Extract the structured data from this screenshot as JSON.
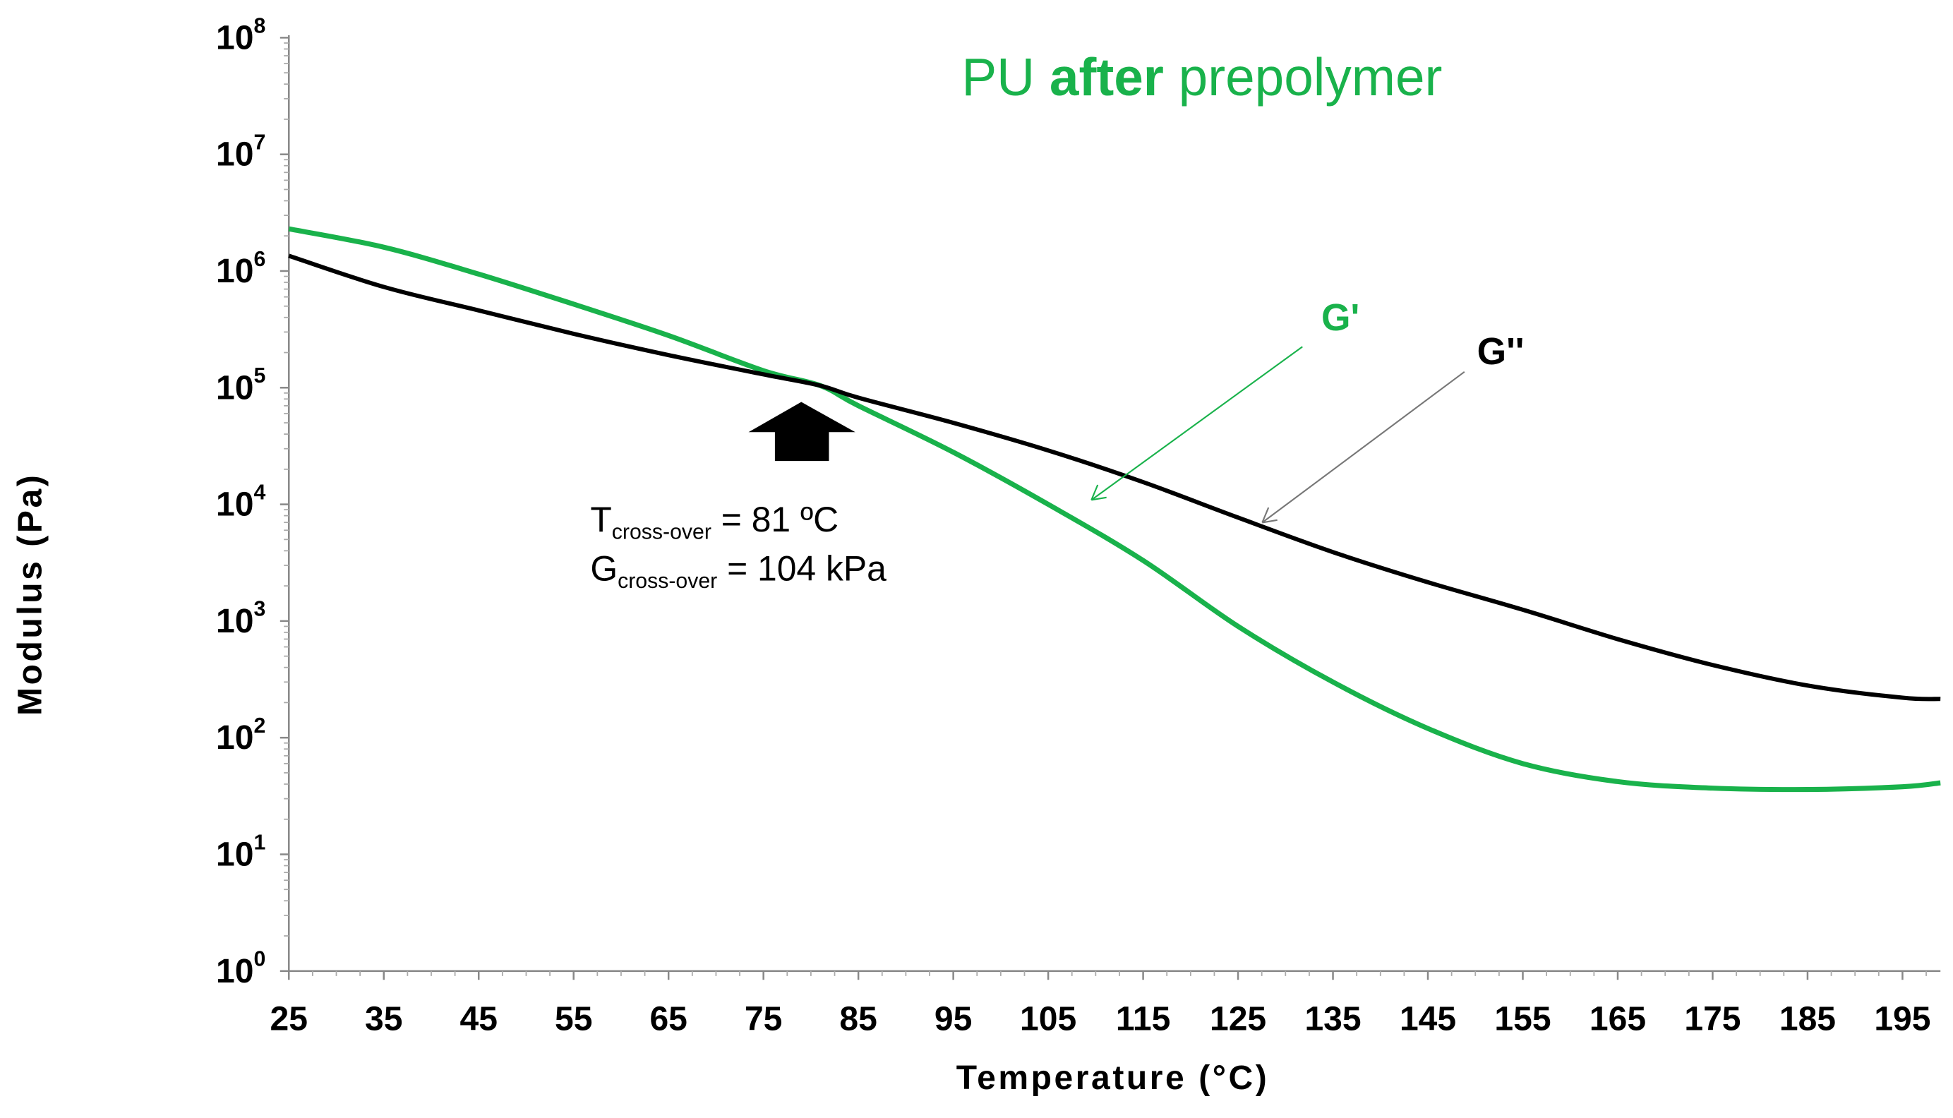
{
  "chart_data": {
    "type": "line",
    "title": {
      "prefix": "PU ",
      "emphasis": "after",
      "suffix": " prepolymer",
      "color": "#19b24b"
    },
    "xlabel": "Temperature (°C)",
    "ylabel": "Modulus (Pa)",
    "xlim": [
      25,
      199
    ],
    "ylim": [
      1,
      100000000
    ],
    "y_scale": "log",
    "x_ticks": [
      25,
      35,
      45,
      55,
      65,
      75,
      85,
      95,
      105,
      115,
      125,
      135,
      145,
      155,
      165,
      175,
      185,
      195
    ],
    "y_tick_labels": [
      {
        "base": "10",
        "exp": "0"
      },
      {
        "base": "10",
        "exp": "1"
      },
      {
        "base": "10",
        "exp": "2"
      },
      {
        "base": "10",
        "exp": "3"
      },
      {
        "base": "10",
        "exp": "4"
      },
      {
        "base": "10",
        "exp": "5"
      },
      {
        "base": "10",
        "exp": "6"
      },
      {
        "base": "10",
        "exp": "7"
      },
      {
        "base": "10",
        "exp": "8"
      }
    ],
    "grid": false,
    "series": [
      {
        "name": "G'",
        "color": "#19b24b",
        "x": [
          25,
          35,
          45,
          55,
          65,
          75,
          81,
          85,
          95,
          105,
          115,
          125,
          135,
          145,
          155,
          165,
          175,
          185,
          195,
          199
        ],
        "y": [
          2300000,
          1600000,
          940000,
          520000,
          280000,
          140000,
          104000,
          70000,
          28000,
          10000,
          3300,
          900,
          300,
          120,
          60,
          42,
          37,
          36,
          38,
          41
        ]
      },
      {
        "name": "G''",
        "color": "#000000",
        "x": [
          25,
          35,
          45,
          55,
          65,
          75,
          81,
          85,
          95,
          105,
          115,
          125,
          135,
          145,
          155,
          165,
          175,
          185,
          195,
          199
        ],
        "y": [
          1350000,
          730000,
          460000,
          290000,
          190000,
          130000,
          104000,
          82000,
          50000,
          29000,
          15500,
          7700,
          3900,
          2150,
          1250,
          700,
          420,
          280,
          220,
          215
        ]
      }
    ],
    "annotations": {
      "crossover_x": 81,
      "crossover_y": 104000,
      "line1_main": "T",
      "line1_sub": "cross-over",
      "line1_rest": " = 81 ºC",
      "line2_main": "G",
      "line2_sub": "cross-over",
      "line2_rest": " = 104 kPa"
    }
  }
}
